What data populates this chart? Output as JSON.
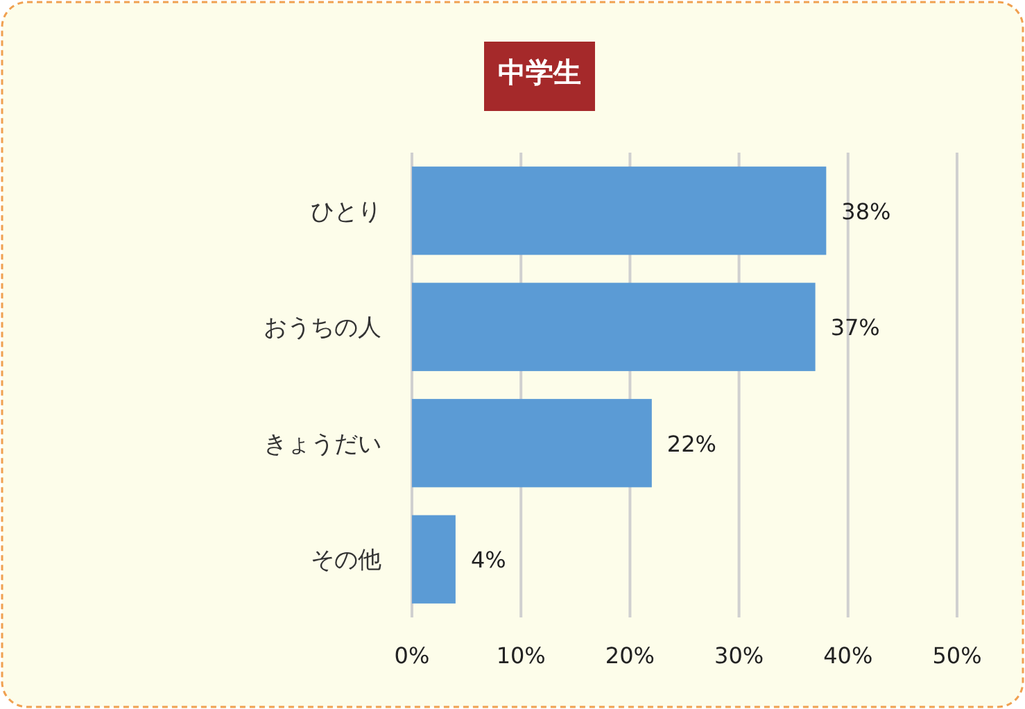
{
  "chart_data": {
    "type": "bar",
    "orientation": "horizontal",
    "title": "中学生",
    "categories": [
      "ひとり",
      "おうちの人",
      "きょうだい",
      "その他"
    ],
    "values": [
      38,
      37,
      22,
      4
    ],
    "value_labels": [
      "38%",
      "37%",
      "22%",
      "4%"
    ],
    "color": "#5b9bd5",
    "xlim": [
      0,
      50
    ],
    "xticks": [
      {
        "value": 0,
        "label": "0%"
      },
      {
        "value": 10,
        "label": "10%"
      },
      {
        "value": 20,
        "label": "20%"
      },
      {
        "value": 30,
        "label": "30%"
      },
      {
        "value": 40,
        "label": "40%"
      },
      {
        "value": 50,
        "label": "50%"
      }
    ],
    "grid": "x"
  }
}
